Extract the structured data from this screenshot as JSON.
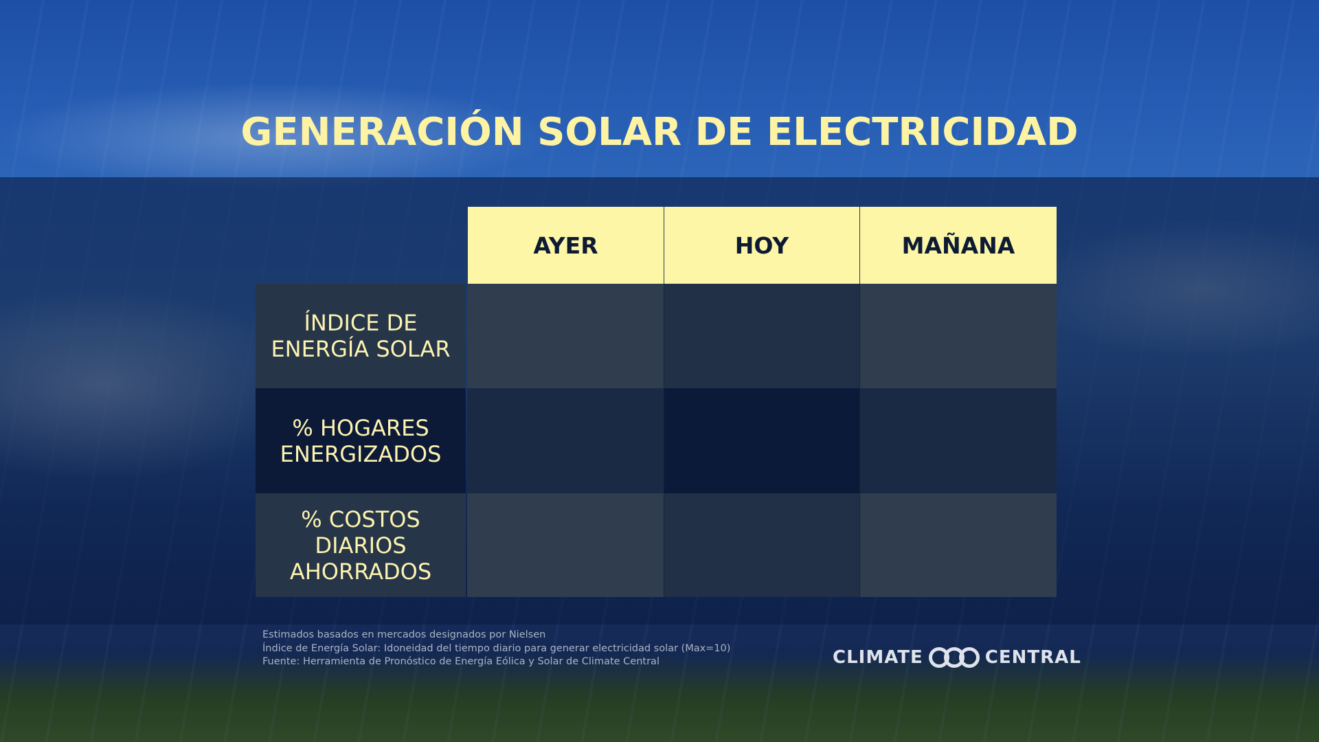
{
  "header": {
    "title": "GENERACIÓN SOLAR DE ELECTRICIDAD"
  },
  "table": {
    "columns": [
      "AYER",
      "HOY",
      "MAÑANA"
    ],
    "rows": [
      [
        "ÍNDICE DE ENERGÍA SOLAR"
      ],
      [
        "% HOGARES ENERGIZADOS"
      ],
      [
        "% COSTOS DIARIOS AHORRADOS"
      ]
    ]
  },
  "footer": {
    "notes": [
      "Estimados basados en mercados designados por Nielsen",
      "Índice de Energía Solar: Idoneidad del tiempo diario para generar electricidad solar (Max=10)",
      "Fuente: Herramienta de Pronóstico de Energía Eólica y Solar de Climate Central"
    ],
    "logo": [
      "CLIMATE",
      "CENTRAL"
    ]
  }
}
